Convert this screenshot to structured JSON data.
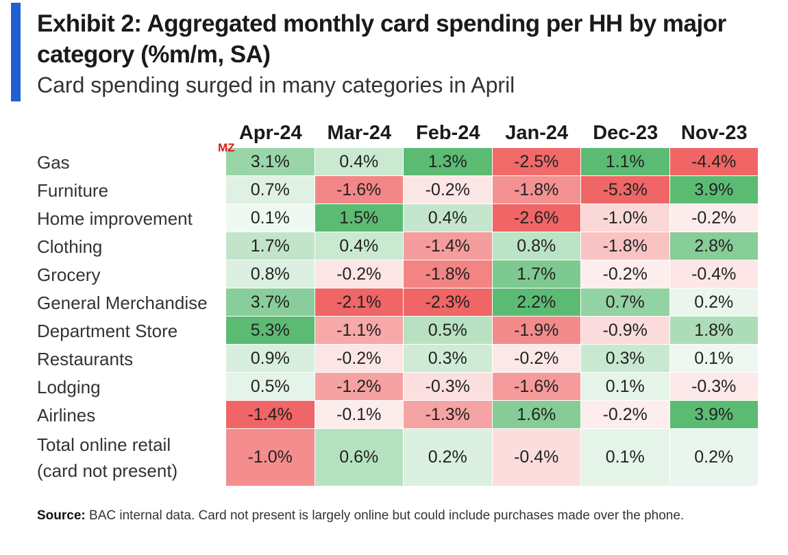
{
  "header": {
    "title": "Exhibit 2: Aggregated monthly card spending per HH by major category (%m/m, SA)",
    "subtitle": "Card spending surged in many categories in April"
  },
  "watermark": "MZ",
  "source": {
    "label": "Source:",
    "text": "BAC internal data. Card not present is largely online but could include purchases made over the phone."
  },
  "chart_data": {
    "type": "heatmap",
    "title": "Exhibit 2: Aggregated monthly card spending per HH by major category (%m/m, SA)",
    "subtitle": "Card spending surged in many categories in April",
    "columns": [
      "Apr-24",
      "Mar-24",
      "Feb-24",
      "Jan-24",
      "Dec-23",
      "Nov-23"
    ],
    "rows": [
      "Gas",
      "Furniture",
      "Home improvement",
      "Clothing",
      "Grocery",
      "General Merchandise",
      "Department Store",
      "Restaurants",
      "Lodging",
      "Airlines",
      "Total online retail\n(card not present)"
    ],
    "values": [
      [
        3.1,
        0.4,
        1.3,
        -2.5,
        1.1,
        -4.4
      ],
      [
        0.7,
        -1.6,
        -0.2,
        -1.8,
        -5.3,
        3.9
      ],
      [
        0.1,
        1.5,
        0.4,
        -2.6,
        -1.0,
        -0.2
      ],
      [
        1.7,
        0.4,
        -1.4,
        0.8,
        -1.8,
        2.8
      ],
      [
        0.8,
        -0.2,
        -1.8,
        1.7,
        -0.2,
        -0.4
      ],
      [
        3.7,
        -2.1,
        -2.3,
        2.2,
        0.7,
        0.2
      ],
      [
        5.3,
        -1.1,
        0.5,
        -1.9,
        -0.9,
        1.8
      ],
      [
        0.9,
        -0.2,
        0.3,
        -0.2,
        0.3,
        0.1
      ],
      [
        0.5,
        -1.2,
        -0.3,
        -1.6,
        0.1,
        -0.3
      ],
      [
        -1.4,
        -0.1,
        -1.3,
        1.6,
        -0.2,
        3.9
      ],
      [
        -1.0,
        0.6,
        0.2,
        -0.4,
        0.1,
        0.2
      ]
    ],
    "labels": [
      [
        "3.1%",
        "0.4%",
        "1.3%",
        "-2.5%",
        "1.1%",
        "-4.4%"
      ],
      [
        "0.7%",
        "-1.6%",
        "-0.2%",
        "-1.8%",
        "-5.3%",
        "3.9%"
      ],
      [
        "0.1%",
        "1.5%",
        "0.4%",
        "-2.6%",
        "-1.0%",
        "-0.2%"
      ],
      [
        "1.7%",
        "0.4%",
        "-1.4%",
        "0.8%",
        "-1.8%",
        "2.8%"
      ],
      [
        "0.8%",
        "-0.2%",
        "-1.8%",
        "1.7%",
        "-0.2%",
        "-0.4%"
      ],
      [
        "3.7%",
        "-2.1%",
        "-2.3%",
        "2.2%",
        "0.7%",
        "0.2%"
      ],
      [
        "5.3%",
        "-1.1%",
        "0.5%",
        "-1.9%",
        "-0.9%",
        "1.8%"
      ],
      [
        "0.9%",
        "-0.2%",
        "0.3%",
        "-0.2%",
        "0.3%",
        "0.1%"
      ],
      [
        "0.5%",
        "-1.2%",
        "-0.3%",
        "-1.6%",
        "0.1%",
        "-0.3%"
      ],
      [
        "-1.4%",
        "-0.1%",
        "-1.3%",
        "1.6%",
        "-0.2%",
        "3.9%"
      ],
      [
        "-1.0%",
        "0.6%",
        "0.2%",
        "-0.4%",
        "0.1%",
        "0.2%"
      ]
    ],
    "color_scale": {
      "positive": "#5cbb73",
      "negative": "#f06565",
      "neutral": "#ffffff"
    }
  }
}
